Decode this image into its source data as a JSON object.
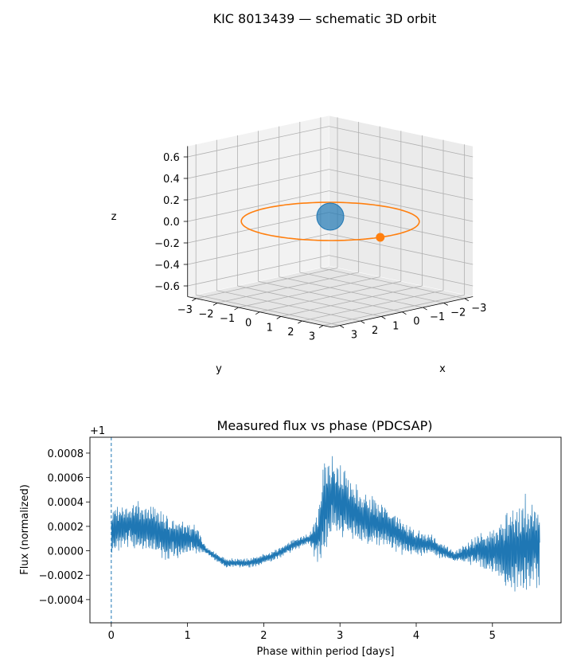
{
  "chart_data": [
    {
      "type": "3d-line",
      "title": "KIC 8013439 — schematic 3D orbit",
      "xlabel": "x",
      "ylabel": "y",
      "zlabel": "z",
      "xlim": [
        -3.4,
        3.4
      ],
      "ylim": [
        -3.4,
        3.4
      ],
      "zlim": [
        -0.7,
        0.7
      ],
      "x_ticks": [
        "−3",
        "−2",
        "−1",
        "0",
        "1",
        "2",
        "3"
      ],
      "y_ticks": [
        "−3",
        "−2",
        "−1",
        "0",
        "1",
        "2",
        "3"
      ],
      "z_ticks": [
        "−0.6",
        "−0.4",
        "−0.2",
        "0.0",
        "0.2",
        "0.4",
        "0.6"
      ],
      "grid": true,
      "series": [
        {
          "kind": "orbit",
          "shape": "circle",
          "radius": 3.0,
          "z": 0.0,
          "color": "#ff7f0e"
        },
        {
          "kind": "star",
          "x": 0.0,
          "y": 0.0,
          "z": 0.0,
          "color": "#1f77b4"
        },
        {
          "kind": "planet",
          "x": 0.6,
          "y": 2.95,
          "z": 0.0,
          "color": "#ff7f0e"
        }
      ]
    },
    {
      "type": "line",
      "title": "Measured flux vs phase (PDCSAP)",
      "xlabel": "Phase within period [days]",
      "ylabel": "Flux (normalized)",
      "offset_label": "+1",
      "xlim": [
        -0.28,
        5.9
      ],
      "ylim": [
        -0.00059,
        0.00093
      ],
      "x_ticks": [
        "0",
        "1",
        "2",
        "3",
        "4",
        "5"
      ],
      "y_ticks": [
        "−0.0004",
        "−0.0002",
        "0.0000",
        "0.0002",
        "0.0004",
        "0.0006",
        "0.0008"
      ],
      "grid": false,
      "color": "#1f77b4",
      "transit_marker_x": 0.0,
      "flux_profile": {
        "x": [
          0.0,
          0.1,
          0.3,
          0.5,
          0.7,
          0.9,
          1.1,
          1.25,
          1.5,
          1.8,
          2.1,
          2.4,
          2.6,
          2.7,
          2.8,
          2.9,
          3.0,
          3.3,
          3.6,
          3.9,
          4.2,
          4.5,
          4.8,
          5.0,
          5.2,
          5.4,
          5.62
        ],
        "mean": [
          0.00015,
          0.0002,
          0.0002,
          0.00018,
          0.00012,
          0.0001,
          0.0001,
          0.0,
          -0.0001,
          -0.0001,
          -5e-05,
          5e-05,
          0.0001,
          0.0001,
          0.00035,
          0.00045,
          0.0004,
          0.00025,
          0.0002,
          8e-05,
          5e-05,
          -5e-05,
          0.0,
          0.0,
          0.0,
          5e-05,
          5e-05
        ],
        "amplitude": [
          0.0002,
          0.00018,
          0.0002,
          0.00022,
          0.00018,
          0.00015,
          0.00012,
          3e-05,
          4e-05,
          4e-05,
          4e-05,
          5e-05,
          4e-05,
          0.0002,
          0.0004,
          0.00035,
          0.0003,
          0.00022,
          0.00018,
          0.00012,
          8e-05,
          5e-05,
          0.00012,
          0.0002,
          0.00035,
          0.00038,
          0.00033
        ]
      }
    }
  ]
}
